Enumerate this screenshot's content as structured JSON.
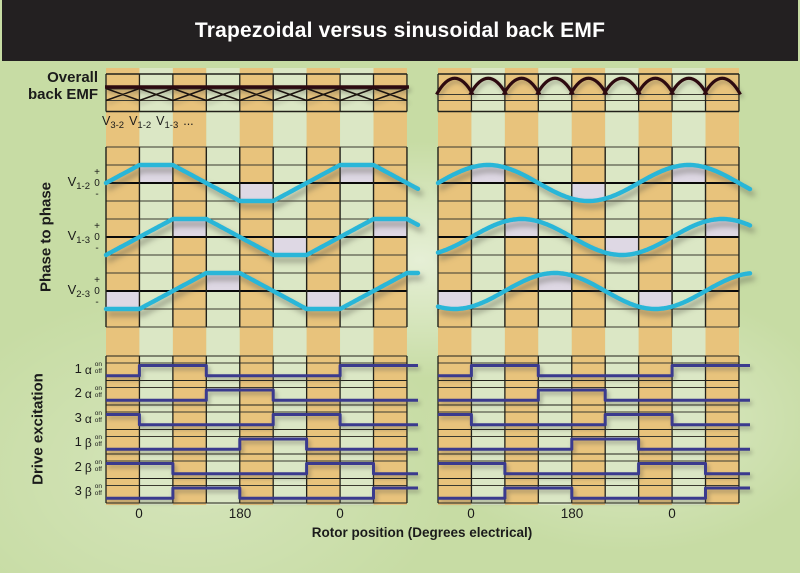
{
  "title": "Trapezoidal versus sinusoidal back EMF",
  "row_labels": {
    "overall_line1": "Overall",
    "overall_line2": "back EMF",
    "phase": "Phase to phase",
    "drive": "Drive excitation"
  },
  "overall_caption": {
    "v1": {
      "base": "V",
      "sub": "3-2"
    },
    "v2": {
      "base": "V",
      "sub": "1-2"
    },
    "v3": {
      "base": "V",
      "sub": "1-3"
    },
    "ellipsis": "..."
  },
  "phase_rows": [
    {
      "base": "V",
      "sub": "1-2",
      "plus": "+",
      "zero": "0",
      "minus": "-"
    },
    {
      "base": "V",
      "sub": "1-3",
      "plus": "+",
      "zero": "0",
      "minus": "-"
    },
    {
      "base": "V",
      "sub": "2-3",
      "plus": "+",
      "zero": "0",
      "minus": "-"
    }
  ],
  "drive_rows": [
    {
      "num": "1",
      "greek": "α",
      "on": "on",
      "off": "off"
    },
    {
      "num": "2",
      "greek": "α",
      "on": "on",
      "off": "off"
    },
    {
      "num": "3",
      "greek": "α",
      "on": "on",
      "off": "off"
    },
    {
      "num": "1",
      "greek": "β",
      "on": "on",
      "off": "off"
    },
    {
      "num": "2",
      "greek": "β",
      "on": "on",
      "off": "off"
    },
    {
      "num": "3",
      "greek": "β",
      "on": "on",
      "off": "off"
    }
  ],
  "axis": {
    "ticks": [
      "0",
      "180",
      "0"
    ],
    "xlabel": "Rotor position (Degrees electrical)"
  },
  "colors": {
    "title_bar": "#232021",
    "background_green": "#c7dca4",
    "tan_stripe": "#e8c37c",
    "panel_green": "#dbe7c5",
    "lavender_cell": "#ded8e4",
    "cyan_wave": "#29b6d8",
    "navy_wave": "#3a3a8e",
    "dark_maroon": "#2d0a10",
    "grid_dark": "#21211b",
    "grid_thin": "#3a3a30"
  },
  "chart_data": {
    "type": "line",
    "title": "Trapezoidal versus sinusoidal back EMF",
    "xlabel": "Rotor position (Degrees electrical)",
    "x_tick_labels": [
      "0",
      "180",
      "0"
    ],
    "x_tick_cols": [
      1,
      4,
      7
    ],
    "degrees_per_column": 60,
    "columns": 9,
    "amplitude_axis_labels": [
      "+",
      "0",
      "-"
    ],
    "panels": [
      {
        "name": "Trapezoidal",
        "overall_back_emf": {
          "style": "trapezoidal-envelope",
          "description": "flat dark envelope line over X-shaped crossings of overlapping trapezoidal phase EMFs, one crossing per 60-degree column"
        },
        "phase_to_phase": [
          {
            "label": "V1-2",
            "shape": "trapezoid",
            "peak_center_col": 1.5,
            "period_cols": 6,
            "flat_top_cols": 1,
            "ramp_cols": 2,
            "shaded_cells": [
              {
                "col": 1,
                "sign": "+"
              },
              {
                "col": 4,
                "sign": "-"
              },
              {
                "col": 7,
                "sign": "+"
              }
            ]
          },
          {
            "label": "V1-3",
            "shape": "trapezoid",
            "peak_center_col": 2.5,
            "period_cols": 6,
            "flat_top_cols": 1,
            "ramp_cols": 2,
            "shaded_cells": [
              {
                "col": 2,
                "sign": "+"
              },
              {
                "col": 5,
                "sign": "-"
              },
              {
                "col": 8,
                "sign": "+"
              }
            ]
          },
          {
            "label": "V2-3",
            "shape": "trapezoid",
            "peak_center_col": 3.5,
            "period_cols": 6,
            "flat_top_cols": 1,
            "ramp_cols": 2,
            "shaded_cells": [
              {
                "col": 0,
                "sign": "-"
              },
              {
                "col": 3,
                "sign": "+"
              },
              {
                "col": 6,
                "sign": "-"
              }
            ]
          }
        ],
        "drive_excitation": [
          {
            "label": "1α",
            "on_cols": [
              [
                1,
                3
              ],
              [
                7,
                9
              ]
            ]
          },
          {
            "label": "2α",
            "on_cols": [
              [
                3,
                5
              ]
            ]
          },
          {
            "label": "3α",
            "on_cols": [
              [
                0,
                1
              ],
              [
                5,
                7
              ]
            ]
          },
          {
            "label": "1β",
            "on_cols": [
              [
                4,
                6
              ]
            ]
          },
          {
            "label": "2β",
            "on_cols": [
              [
                0,
                2
              ],
              [
                6,
                8
              ]
            ]
          },
          {
            "label": "3β",
            "on_cols": [
              [
                2,
                4
              ],
              [
                8,
                9
              ]
            ]
          }
        ]
      },
      {
        "name": "Sinusoidal",
        "overall_back_emf": {
          "style": "rectified-sine-scallops",
          "description": "repeating dark rectified-sinusoid arches, one arch per 60-degree column"
        },
        "phase_to_phase": [
          {
            "label": "V1-2",
            "shape": "sine",
            "peak_center_col": 1.5,
            "period_cols": 6,
            "shaded_cells": [
              {
                "col": 1,
                "sign": "+"
              },
              {
                "col": 4,
                "sign": "-"
              },
              {
                "col": 7,
                "sign": "+"
              }
            ]
          },
          {
            "label": "V1-3",
            "shape": "sine",
            "peak_center_col": 2.5,
            "period_cols": 6,
            "shaded_cells": [
              {
                "col": 2,
                "sign": "+"
              },
              {
                "col": 5,
                "sign": "-"
              },
              {
                "col": 8,
                "sign": "+"
              }
            ]
          },
          {
            "label": "V2-3",
            "shape": "sine",
            "peak_center_col": 3.5,
            "period_cols": 6,
            "shaded_cells": [
              {
                "col": 0,
                "sign": "-"
              },
              {
                "col": 3,
                "sign": "+"
              },
              {
                "col": 6,
                "sign": "-"
              }
            ]
          }
        ],
        "drive_excitation": [
          {
            "label": "1α",
            "on_cols": [
              [
                1,
                3
              ],
              [
                7,
                9
              ]
            ]
          },
          {
            "label": "2α",
            "on_cols": [
              [
                3,
                5
              ]
            ]
          },
          {
            "label": "3α",
            "on_cols": [
              [
                0,
                1
              ],
              [
                5,
                7
              ]
            ]
          },
          {
            "label": "1β",
            "on_cols": [
              [
                4,
                6
              ]
            ]
          },
          {
            "label": "2β",
            "on_cols": [
              [
                0,
                2
              ],
              [
                6,
                8
              ]
            ]
          },
          {
            "label": "3β",
            "on_cols": [
              [
                2,
                4
              ],
              [
                8,
                9
              ]
            ]
          }
        ]
      }
    ]
  }
}
